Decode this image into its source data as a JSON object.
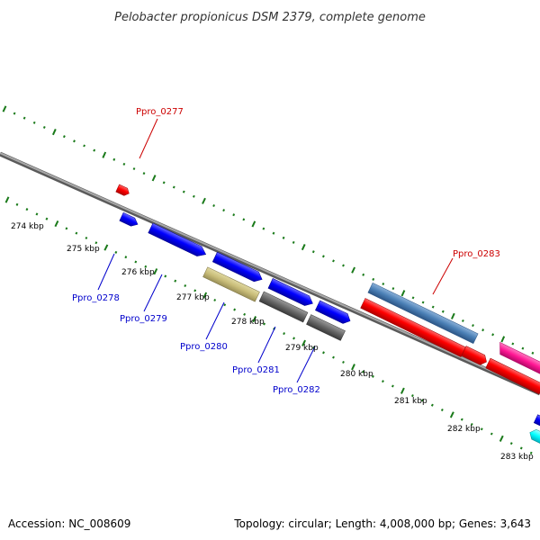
{
  "title": "Pelobacter propionicus DSM 2379, complete genome",
  "footer": {
    "accession": "Accession: NC_008609",
    "topology": "Topology: circular; Length: 4,008,000 bp; Genes: 3,643"
  },
  "kbp_labels": [
    "274 kbp",
    "275 kbp",
    "276 kbp",
    "277 kbp",
    "278 kbp",
    "279 kbp",
    "280 kbp",
    "281 kbp",
    "282 kbp",
    "283 kbp"
  ],
  "genes": [
    {
      "id": "Ppro_0277",
      "color": "#ff0000"
    },
    {
      "id": "Ppro_0278",
      "color": "#0000ff"
    },
    {
      "id": "Ppro_0279",
      "color": "#0000ff"
    },
    {
      "id": "Ppro_0280",
      "color": "#0000cc"
    },
    {
      "id": "Ppro_0281",
      "color": "#0000cc"
    },
    {
      "id": "Ppro_0282",
      "color": "#0000cc"
    },
    {
      "id": "Ppro_0283",
      "color": "#dd0000"
    }
  ],
  "colors": {
    "backbone": "#888888",
    "tick": "#1a7a1a",
    "forward_label": "#cc0000",
    "reverse_label": "#0000cc",
    "blue_gene": "#0000ff",
    "olive_gene": "#c8bc78",
    "gray_gene": "#666666",
    "steel_gene": "#4a7fb5",
    "red_gene": "#ff0000",
    "magenta_gene": "#ff1493",
    "cyan_gene": "#00ffff"
  }
}
